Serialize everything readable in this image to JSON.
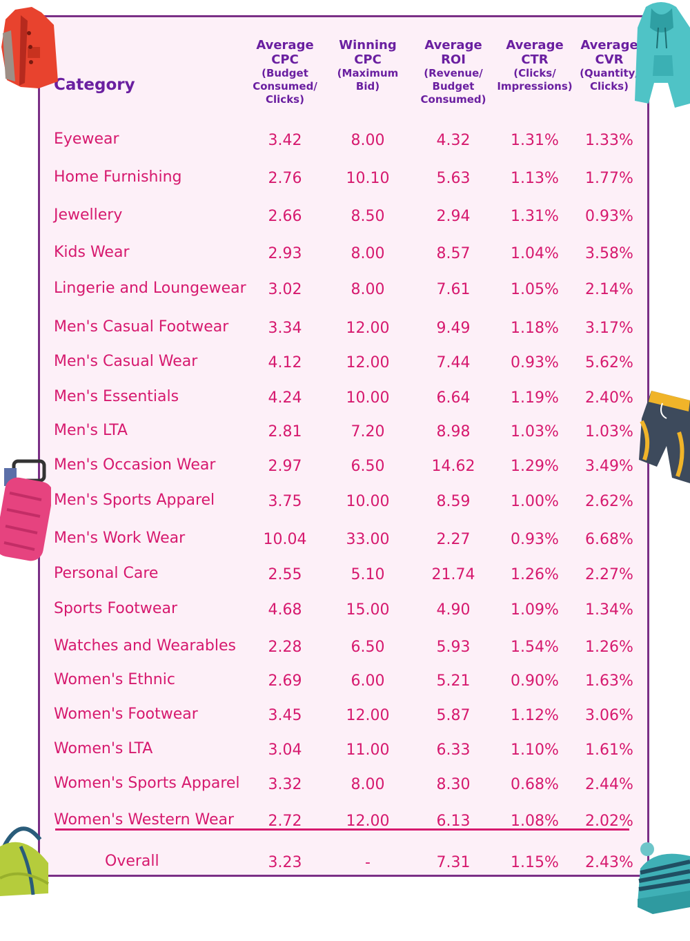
{
  "table": {
    "category_header": "Category",
    "columns": [
      {
        "main": [
          "Average",
          "CPC"
        ],
        "sub": [
          "(Budget",
          "Consumed/",
          "Clicks)"
        ]
      },
      {
        "main": [
          "Winning",
          "CPC"
        ],
        "sub": [
          "(Maximum",
          "Bid)"
        ]
      },
      {
        "main": [
          "Average",
          "ROI"
        ],
        "sub": [
          "(Revenue/",
          "Budget",
          "Consumed)"
        ]
      },
      {
        "main": [
          "Average",
          "CTR"
        ],
        "sub": [
          "(Clicks/",
          "Impressions)"
        ]
      },
      {
        "main": [
          "Average",
          "CVR"
        ],
        "sub": [
          "(Quantity/",
          "Clicks)"
        ]
      }
    ],
    "rows": [
      {
        "category": "Eyewear",
        "values": [
          "3.42",
          "8.00",
          "4.32",
          "1.31%",
          "1.33%"
        ]
      },
      {
        "category": "Home Furnishing",
        "values": [
          "2.76",
          "10.10",
          "5.63",
          "1.13%",
          "1.77%"
        ]
      },
      {
        "category": "Jewellery",
        "values": [
          "2.66",
          "8.50",
          "2.94",
          "1.31%",
          "0.93%"
        ]
      },
      {
        "category": "Kids Wear",
        "values": [
          "2.93",
          "8.00",
          "8.57",
          "1.04%",
          "3.58%"
        ]
      },
      {
        "category": "Lingerie and Loungewear",
        "values": [
          "3.02",
          "8.00",
          "7.61",
          "1.05%",
          "2.14%"
        ]
      },
      {
        "category": "Men's Casual Footwear",
        "values": [
          "3.34",
          "12.00",
          "9.49",
          "1.18%",
          "3.17%"
        ]
      },
      {
        "category": "Men's Casual Wear",
        "values": [
          "4.12",
          "12.00",
          "7.44",
          "0.93%",
          "5.62%"
        ]
      },
      {
        "category": "Men's Essentials",
        "values": [
          "4.24",
          "10.00",
          "6.64",
          "1.19%",
          "2.40%"
        ]
      },
      {
        "category": "Men's LTA",
        "values": [
          "2.81",
          "7.20",
          "8.98",
          "1.03%",
          "1.03%"
        ]
      },
      {
        "category": "Men's Occasion Wear",
        "values": [
          "2.97",
          "6.50",
          "14.62",
          "1.29%",
          "3.49%"
        ]
      },
      {
        "category": "Men's Sports Apparel",
        "values": [
          "3.75",
          "10.00",
          "8.59",
          "1.00%",
          "2.62%"
        ]
      },
      {
        "category": "Men's Work Wear",
        "values": [
          "10.04",
          "33.00",
          "2.27",
          "0.93%",
          "6.68%"
        ]
      },
      {
        "category": "Personal Care",
        "values": [
          "2.55",
          "5.10",
          "21.74",
          "1.26%",
          "2.27%"
        ]
      },
      {
        "category": "Sports Footwear",
        "values": [
          "4.68",
          "15.00",
          "4.90",
          "1.09%",
          "1.34%"
        ]
      },
      {
        "category": "Watches and Wearables",
        "values": [
          "2.28",
          "6.50",
          "5.93",
          "1.54%",
          "1.26%"
        ]
      },
      {
        "category": "Women's Ethnic",
        "values": [
          "2.69",
          "6.00",
          "5.21",
          "0.90%",
          "1.63%"
        ]
      },
      {
        "category": "Women's Footwear",
        "values": [
          "3.45",
          "12.00",
          "5.87",
          "1.12%",
          "3.06%"
        ]
      },
      {
        "category": "Women's LTA",
        "values": [
          "3.04",
          "11.00",
          "6.33",
          "1.10%",
          "1.61%"
        ]
      },
      {
        "category": "Women's Sports Apparel",
        "values": [
          "3.32",
          "8.00",
          "8.30",
          "0.68%",
          "2.44%"
        ]
      },
      {
        "category": "Women's Western Wear",
        "values": [
          "2.72",
          "12.00",
          "6.13",
          "1.08%",
          "2.02%"
        ]
      }
    ],
    "overall": {
      "category": "Overall",
      "values": [
        "3.23",
        "-",
        "7.31",
        "1.15%",
        "2.43%"
      ]
    }
  },
  "colors": {
    "header_text": "#6a1fa0",
    "cell_text": "#d6196e",
    "border": "#7a2f86",
    "panel_background": "#fdf0f8"
  },
  "decorations": [
    "jacket-icon",
    "hoodie-icon",
    "suitcase-icon",
    "shorts-icon",
    "handbag-icon",
    "beanie-icon"
  ],
  "chart_data": {
    "type": "table",
    "columns": [
      "Average CPC (Budget Consumed/ Clicks)",
      "Winning CPC (Maximum Bid)",
      "Average ROI (Revenue/ Budget Consumed)",
      "Average CTR (Clicks/ Impressions)",
      "Average CVR (Quantity/ Clicks)"
    ],
    "categories": [
      "Eyewear",
      "Home Furnishing",
      "Jewellery",
      "Kids Wear",
      "Lingerie and Loungewear",
      "Men's Casual Footwear",
      "Men's Casual Wear",
      "Men's Essentials",
      "Men's LTA",
      "Men's Occasion Wear",
      "Men's Sports Apparel",
      "Men's Work Wear",
      "Personal Care",
      "Sports Footwear",
      "Watches and Wearables",
      "Women's Ethnic",
      "Women's Footwear",
      "Women's LTA",
      "Women's Sports Apparel",
      "Women's Western Wear",
      "Overall"
    ],
    "series": [
      {
        "name": "Average CPC",
        "values": [
          3.42,
          2.76,
          2.66,
          2.93,
          3.02,
          3.34,
          4.12,
          4.24,
          2.81,
          2.97,
          3.75,
          10.04,
          2.55,
          4.68,
          2.28,
          2.69,
          3.45,
          3.04,
          3.32,
          2.72,
          3.23
        ]
      },
      {
        "name": "Winning CPC",
        "values": [
          8.0,
          10.1,
          8.5,
          8.0,
          8.0,
          12.0,
          12.0,
          10.0,
          7.2,
          6.5,
          10.0,
          33.0,
          5.1,
          15.0,
          6.5,
          6.0,
          12.0,
          11.0,
          8.0,
          12.0,
          null
        ]
      },
      {
        "name": "Average ROI",
        "values": [
          4.32,
          5.63,
          2.94,
          8.57,
          7.61,
          9.49,
          7.44,
          6.64,
          8.98,
          14.62,
          8.59,
          2.27,
          21.74,
          4.9,
          5.93,
          5.21,
          5.87,
          6.33,
          8.3,
          6.13,
          7.31
        ]
      },
      {
        "name": "Average CTR",
        "values": [
          1.31,
          1.13,
          1.31,
          1.04,
          1.05,
          1.18,
          0.93,
          1.19,
          1.03,
          1.29,
          1.0,
          0.93,
          1.26,
          1.09,
          1.54,
          0.9,
          1.12,
          1.1,
          0.68,
          1.08,
          1.15
        ]
      },
      {
        "name": "Average CVR",
        "values": [
          1.33,
          1.77,
          0.93,
          3.58,
          2.14,
          3.17,
          5.62,
          2.4,
          1.03,
          3.49,
          2.62,
          6.68,
          2.27,
          1.34,
          1.26,
          1.63,
          3.06,
          1.61,
          2.44,
          2.02,
          2.43
        ]
      }
    ]
  }
}
